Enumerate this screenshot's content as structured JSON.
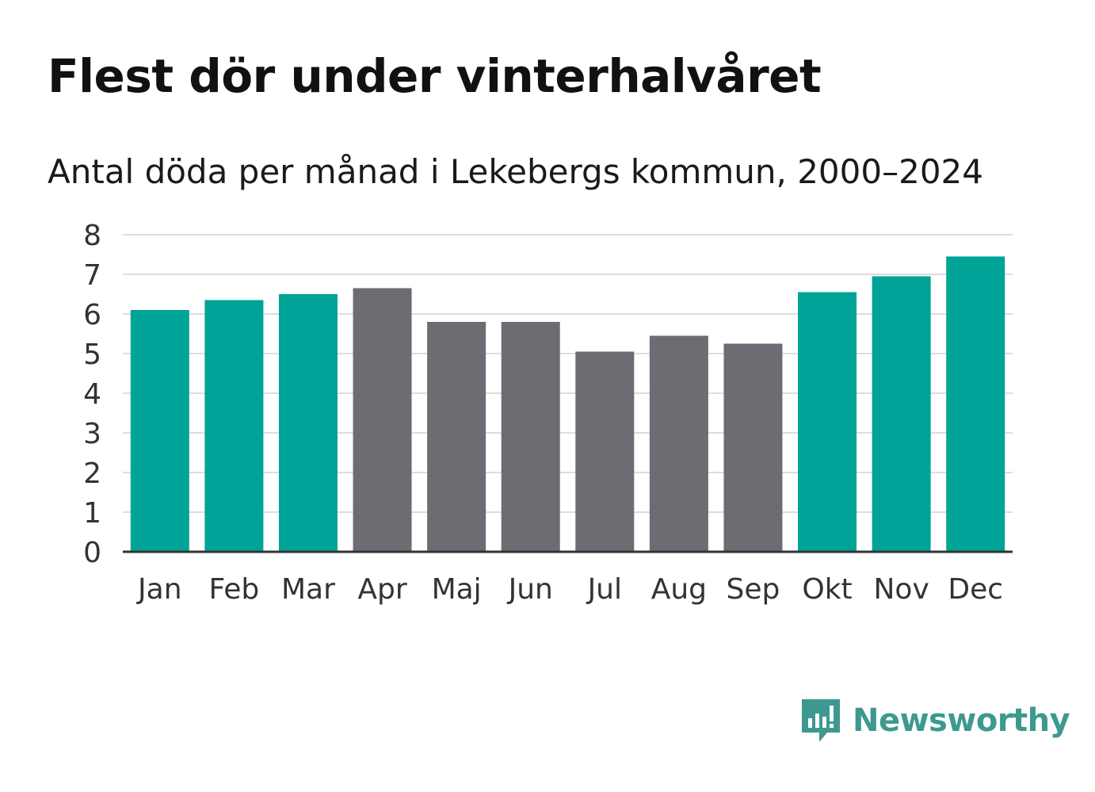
{
  "header": {
    "title": "Flest dör under vinterhalvåret",
    "subtitle": "Antal döda per månad i Lekebergs kommun, 2000–2024"
  },
  "brand": {
    "name": "Newsworthy",
    "icon": "newsworthy-logo-icon",
    "color": "#3d9990"
  },
  "colors": {
    "winter": "#00a398",
    "summer": "#6d6c73",
    "grid": "#dddddd",
    "axis": "#333333",
    "tick_text": "#333333"
  },
  "chart_data": {
    "type": "bar",
    "title": "Flest dör under vinterhalvåret",
    "subtitle": "Antal döda per månad i Lekebergs kommun, 2000–2024",
    "xlabel": "",
    "ylabel": "",
    "ylim": [
      0,
      8
    ],
    "yticks": [
      0,
      1,
      2,
      3,
      4,
      5,
      6,
      7,
      8
    ],
    "grid": true,
    "categories": [
      "Jan",
      "Feb",
      "Mar",
      "Apr",
      "Maj",
      "Jun",
      "Jul",
      "Aug",
      "Sep",
      "Okt",
      "Nov",
      "Dec"
    ],
    "values": [
      6.1,
      6.35,
      6.5,
      6.65,
      5.8,
      5.8,
      5.05,
      5.45,
      5.25,
      6.55,
      6.95,
      7.45
    ],
    "groups": [
      "winter",
      "winter",
      "winter",
      "summer",
      "summer",
      "summer",
      "summer",
      "summer",
      "summer",
      "winter",
      "winter",
      "winter"
    ]
  }
}
